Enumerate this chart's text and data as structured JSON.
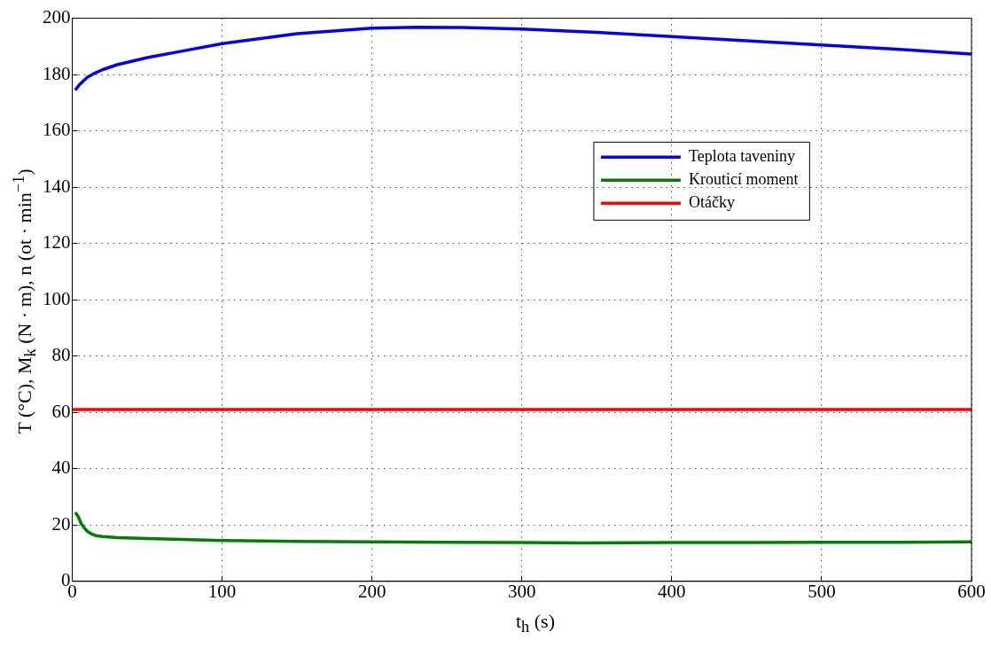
{
  "chart_data": {
    "type": "line",
    "xlabel": "t$_{h}$ (s)",
    "ylabel": "T (°C), M$_{k}$ (N · m), n (ot · min$^{−1}$)",
    "xlim": [
      0,
      600
    ],
    "xticks": [
      0,
      100,
      200,
      300,
      400,
      500,
      600
    ],
    "ylim": [
      0,
      200
    ],
    "yticks": [
      0,
      20,
      40,
      60,
      80,
      100,
      120,
      140,
      160,
      180,
      200
    ],
    "grid": true,
    "legend": "top right",
    "line_style": "solid",
    "marker": "none",
    "series": [
      {
        "name": "Teplota taveniny",
        "color": "#0000ff",
        "x": [
          2,
          5,
          10,
          15,
          20,
          30,
          50,
          75,
          100,
          150,
          200,
          230,
          260,
          300,
          350,
          400,
          450,
          500,
          550,
          600
        ],
        "values": [
          174.5,
          176.5,
          179,
          180.5,
          181.7,
          183.5,
          186,
          188.5,
          191,
          194.5,
          196.5,
          196.8,
          196.7,
          196.2,
          195,
          193.5,
          192,
          190.5,
          189,
          187.3
        ]
      },
      {
        "name": "Krouticí moment",
        "color": "#008000",
        "x": [
          2,
          4,
          6,
          8,
          10,
          13,
          16,
          20,
          30,
          50,
          100,
          150,
          200,
          250,
          300,
          340,
          400,
          450,
          500,
          550,
          600
        ],
        "values": [
          24.5,
          23,
          20.5,
          19,
          17.8,
          16.8,
          16.2,
          15.9,
          15.5,
          15.2,
          14.5,
          14.2,
          14,
          13.9,
          13.8,
          13.6,
          13.8,
          13.8,
          13.9,
          13.9,
          14
        ]
      },
      {
        "name": "Otáčky",
        "color": "#ff0000",
        "x": [
          0,
          600
        ],
        "values": [
          61,
          61
        ]
      }
    ]
  }
}
